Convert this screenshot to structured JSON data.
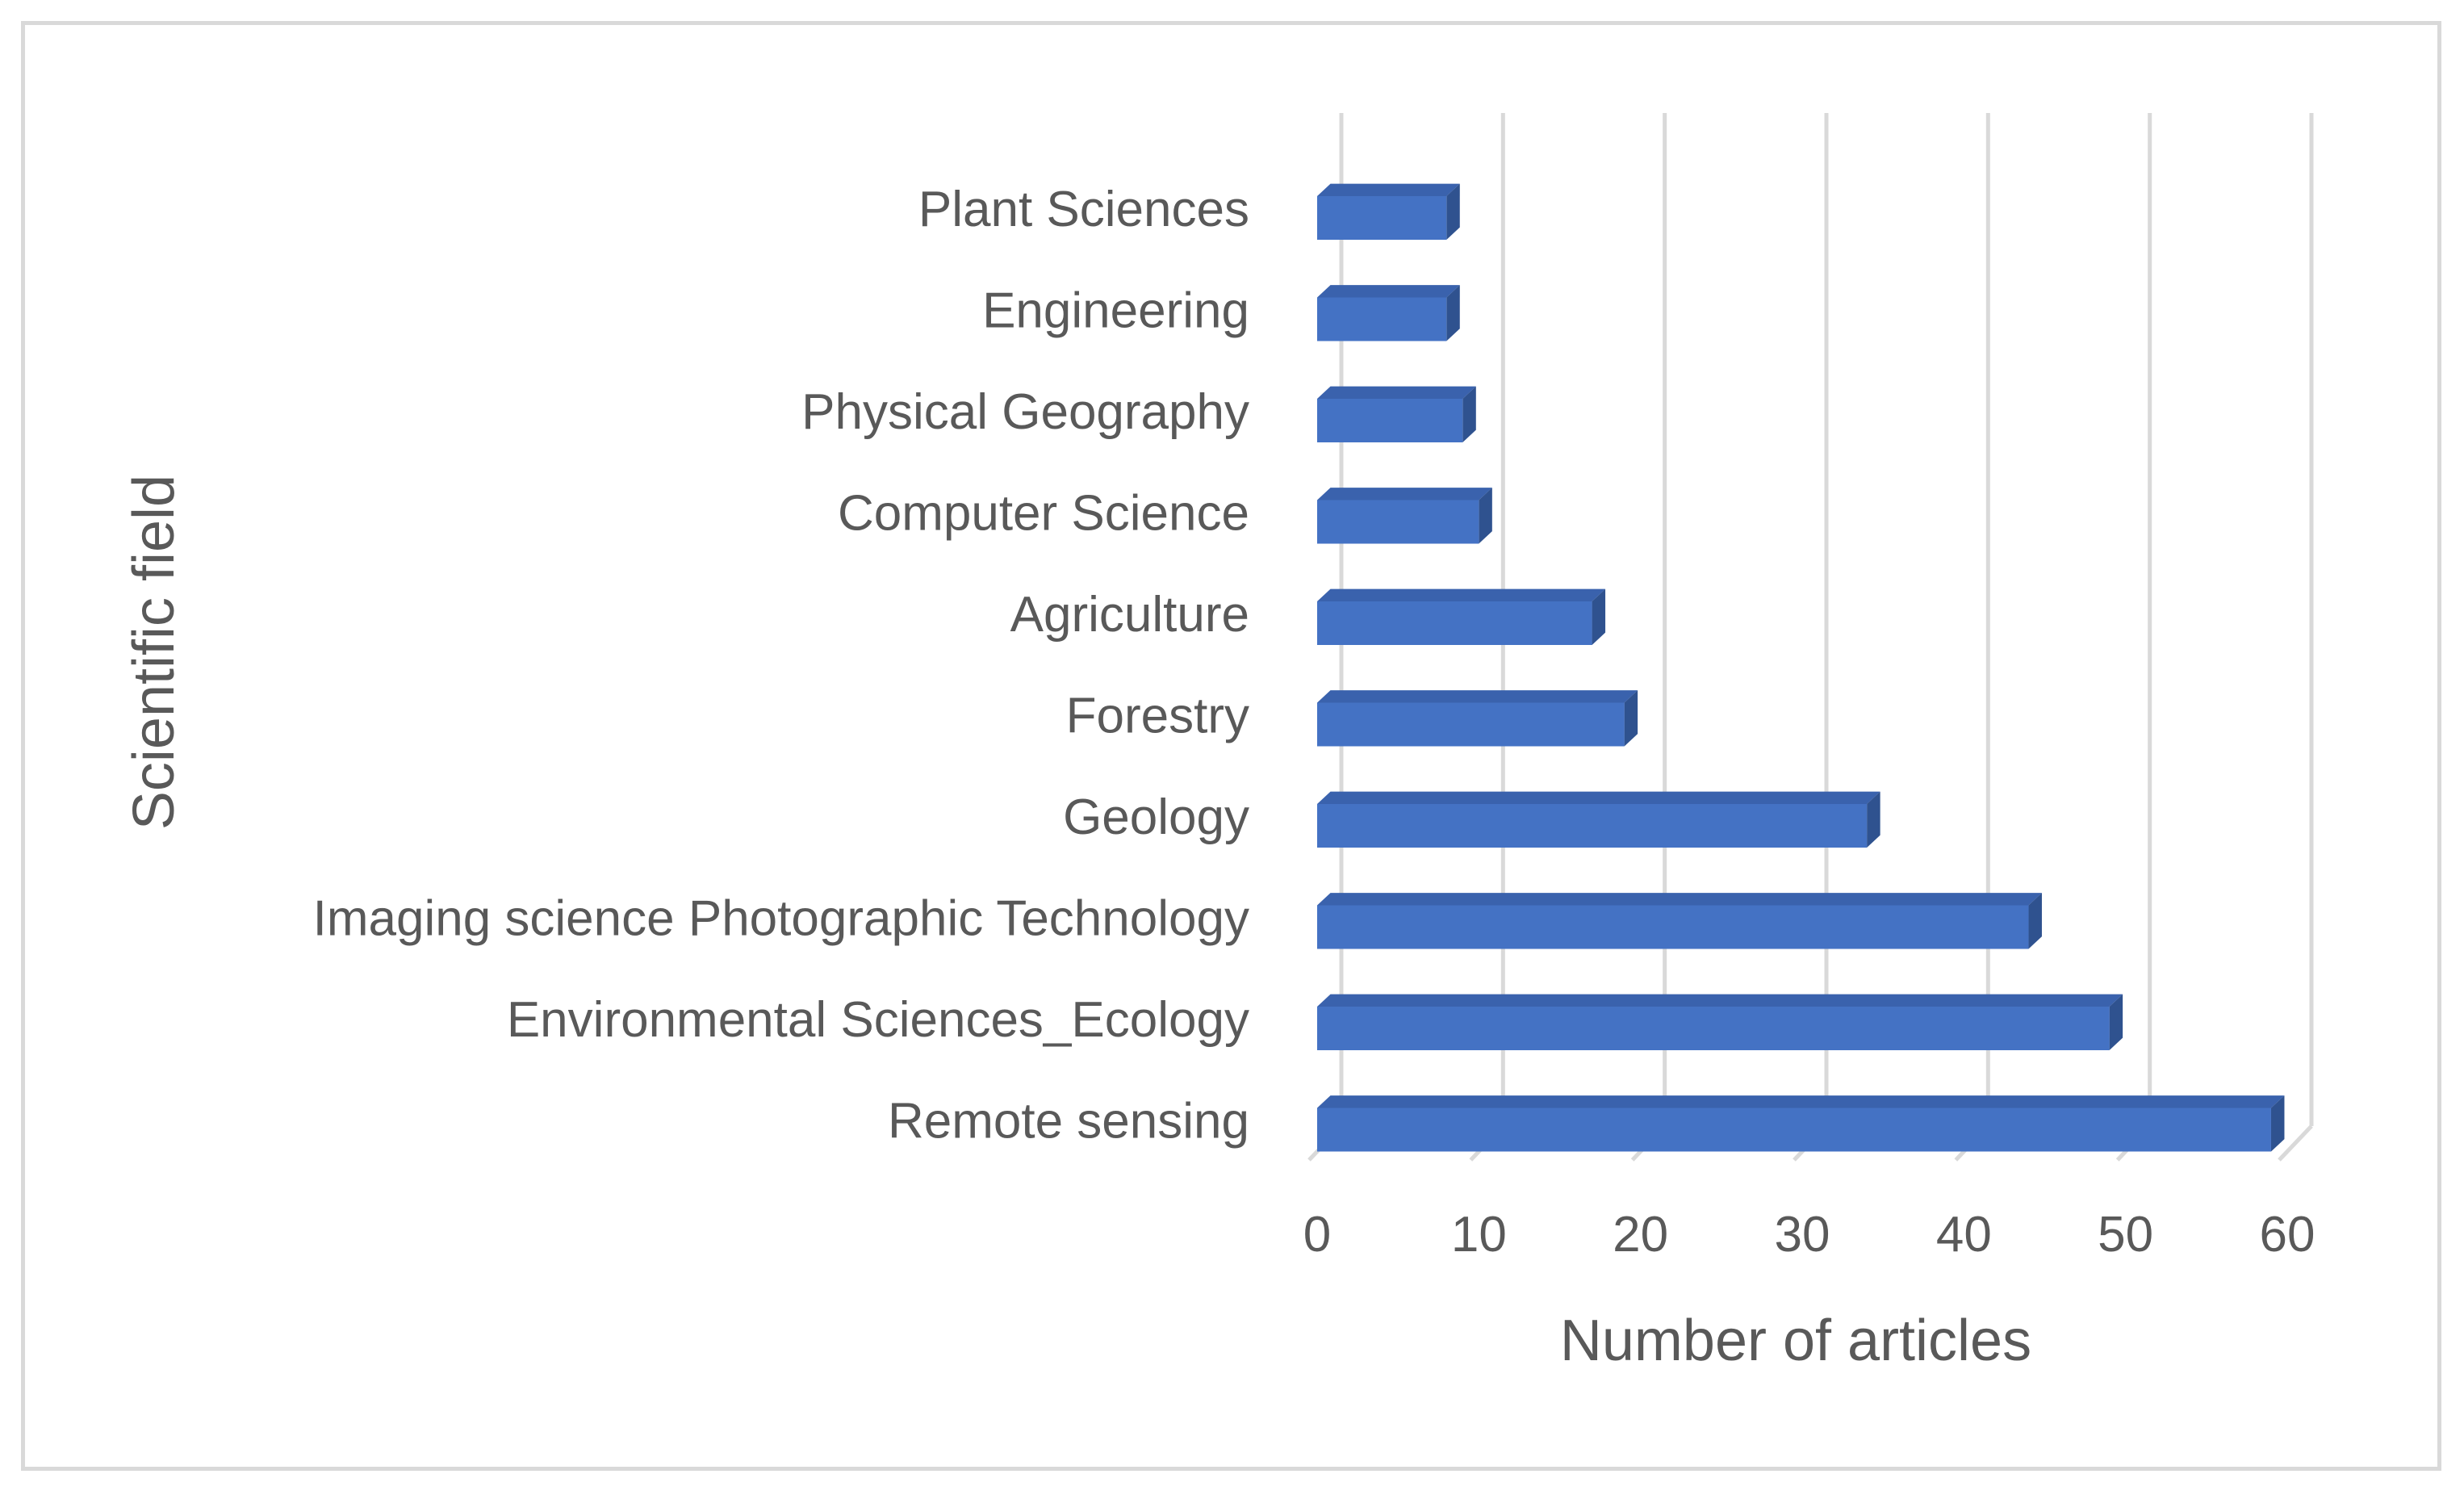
{
  "chart_data": {
    "type": "bar",
    "orientation": "horizontal",
    "style": "3d",
    "categories": [
      "Remote sensing",
      "Environmental Sciences_Ecology",
      "Imaging science Photographic Technology",
      "Geology",
      "Forestry",
      "Agriculture",
      "Computer Science",
      "Physical Geography",
      "Engineering",
      "Plant Sciences"
    ],
    "values": [
      59,
      49,
      44,
      34,
      19,
      17,
      10,
      9,
      8,
      8
    ],
    "title": "",
    "xlabel": "Number of articles",
    "ylabel": "Scientific field",
    "xlim": [
      0,
      60
    ],
    "xticks": [
      "0",
      "10",
      "20",
      "30",
      "40",
      "50",
      "60"
    ],
    "grid": "vertical",
    "legend": "none",
    "bar_color": "#4472c4",
    "bar_side_color": "#2f528f",
    "bar_top_color": "#3a62ad",
    "grid_color": "#d9d9d9",
    "text_color": "#595959"
  }
}
